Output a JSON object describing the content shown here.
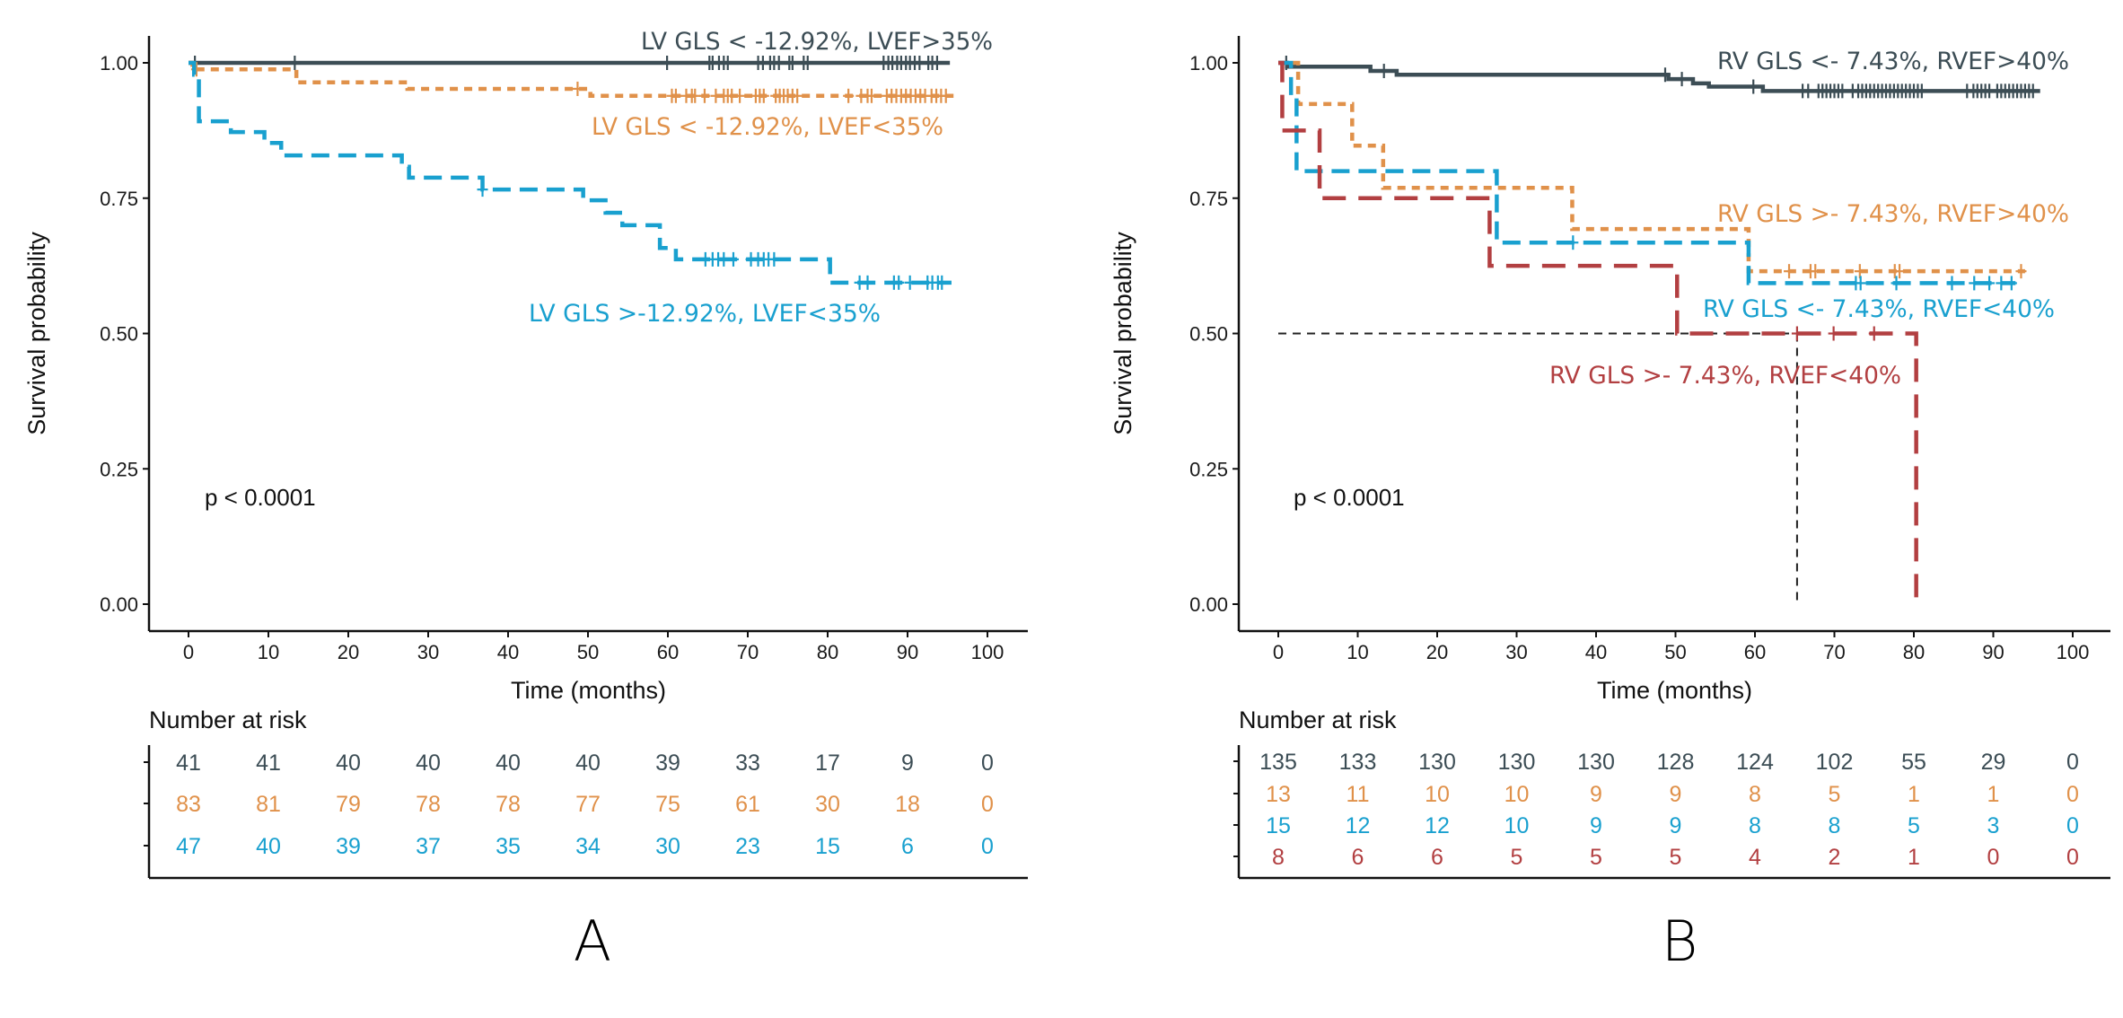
{
  "chart_data": [
    {
      "type": "line",
      "subtype": "kaplan-meier",
      "panel_label": "A",
      "xlabel": "Time (months)",
      "ylabel": "Survival probability",
      "xlim": [
        0,
        100
      ],
      "ylim": [
        0,
        1
      ],
      "x_ticks": [
        0,
        10,
        20,
        30,
        40,
        50,
        60,
        70,
        80,
        90,
        100
      ],
      "y_ticks": [
        "0.00",
        "0.25",
        "0.50",
        "0.75",
        "1.00"
      ],
      "grid": false,
      "pvalue_text": "p < 0.0001",
      "median_line": null,
      "risk_table_title": "Number at risk",
      "series": [
        {
          "name": "LV GLS < -12.92%,  LVEF>35%",
          "color": "#3c4d55",
          "linestyle": "solid",
          "steps": [
            [
              0,
              1.0
            ]
          ],
          "end_time": 95.3,
          "censor_times": [
            0.8,
            13.3,
            59.9,
            65.2,
            65.6,
            66.4,
            67.0,
            67.5,
            71.3,
            71.9,
            72.8,
            73.3,
            73.9,
            75.2,
            75.6,
            77.0,
            77.5,
            87.0,
            87.6,
            88.1,
            88.7,
            89.2,
            89.8,
            90.3,
            90.9,
            91.5,
            92.6,
            93.1,
            93.7
          ],
          "risk": [
            41,
            41,
            40,
            40,
            40,
            40,
            39,
            33,
            17,
            9,
            0
          ]
        },
        {
          "name": "LV GLS < -12.92%,  LVEF<35%",
          "color": "#e0914a",
          "linestyle": "dotted",
          "steps": [
            [
              0,
              1.0
            ],
            [
              0.5,
              0.988
            ],
            [
              13.5,
              0.964
            ],
            [
              27.4,
              0.952
            ],
            [
              50.3,
              0.939
            ]
          ],
          "end_time": 95.8,
          "censor_times": [
            1.0,
            48.7,
            60.5,
            61.0,
            62.3,
            63.0,
            63.4,
            64.6,
            66.0,
            67.0,
            67.5,
            68.0,
            69.0,
            71.0,
            71.5,
            72.0,
            73.5,
            74.0,
            74.5,
            75.0,
            75.6,
            76.2,
            82.6,
            84.2,
            85.0,
            85.5,
            87.4,
            88.0,
            88.6,
            89.2,
            89.8,
            90.4,
            91.0,
            91.6,
            92.2,
            93.0,
            93.6,
            94.2,
            94.8
          ],
          "risk": [
            83,
            81,
            79,
            78,
            78,
            77,
            75,
            61,
            30,
            18,
            0
          ]
        },
        {
          "name": "LV GLS >-12.92%,  LVEF<35%",
          "color": "#19a0cf",
          "linestyle": "dashed",
          "steps": [
            [
              0,
              1.0
            ],
            [
              0.7,
              0.978
            ],
            [
              1.3,
              0.892
            ],
            [
              5.3,
              0.872
            ],
            [
              9.5,
              0.852
            ],
            [
              11.6,
              0.829
            ],
            [
              26.7,
              0.808
            ],
            [
              27.6,
              0.788
            ],
            [
              36.8,
              0.766
            ],
            [
              49.4,
              0.746
            ],
            [
              52.2,
              0.723
            ],
            [
              54.3,
              0.7
            ],
            [
              59.0,
              0.658
            ],
            [
              61.0,
              0.637
            ],
            [
              80.3,
              0.594
            ]
          ],
          "end_time": 95.5,
          "censor_times": [
            36.8,
            64.7,
            65.6,
            66.3,
            67.0,
            68.2,
            70.4,
            71.3,
            72.0,
            72.6,
            73.3,
            84.0,
            85.0,
            88.3,
            88.9,
            90.3,
            92.5,
            93.1,
            93.8,
            94.3
          ],
          "risk": [
            47,
            40,
            39,
            37,
            35,
            34,
            30,
            23,
            15,
            6,
            0
          ]
        }
      ]
    },
    {
      "type": "line",
      "subtype": "kaplan-meier",
      "panel_label": "B",
      "xlabel": "Time (months)",
      "ylabel": "Survival probability",
      "xlim": [
        0,
        100
      ],
      "ylim": [
        0,
        1
      ],
      "x_ticks": [
        0,
        10,
        20,
        30,
        40,
        50,
        60,
        70,
        80,
        90,
        100
      ],
      "y_ticks": [
        "0.00",
        "0.25",
        "0.50",
        "0.75",
        "1.00"
      ],
      "grid": false,
      "pvalue_text": "p < 0.0001",
      "median_line": {
        "survival": 0.5,
        "time": 65.3
      },
      "risk_table_title": "Number at risk",
      "series": [
        {
          "name": "RV GLS <- 7.43%, RVEF>40%",
          "color": "#3c4d55",
          "linestyle": "solid",
          "steps": [
            [
              0,
              1.0
            ],
            [
              1.1,
              0.993
            ],
            [
              11.6,
              0.985
            ],
            [
              14.9,
              0.978
            ],
            [
              49.1,
              0.97
            ],
            [
              52.2,
              0.962
            ],
            [
              54.2,
              0.956
            ],
            [
              61.0,
              0.948
            ]
          ],
          "end_time": 95.9,
          "censor_times": [
            1.0,
            13.3,
            48.7,
            50.8,
            59.8,
            66.0,
            66.7,
            68.0,
            68.5,
            69.0,
            69.5,
            70.0,
            70.5,
            71.0,
            72.3,
            73.0,
            73.5,
            74.0,
            74.5,
            75.0,
            75.5,
            76.0,
            76.5,
            77.0,
            77.5,
            78.0,
            78.5,
            79.0,
            79.5,
            80.0,
            80.5,
            81.0,
            86.7,
            87.5,
            88.0,
            88.5,
            89.0,
            89.5,
            90.5,
            91.0,
            91.5,
            92.0,
            92.5,
            93.0,
            93.5,
            94.0,
            94.5,
            95.0
          ],
          "risk": [
            135,
            133,
            130,
            130,
            130,
            128,
            124,
            102,
            55,
            29,
            0
          ]
        },
        {
          "name": "RV GLS >- 7.43%, RVEF>40%",
          "color": "#e0914a",
          "linestyle": "dotted",
          "steps": [
            [
              0,
              1.0
            ],
            [
              2.5,
              0.924
            ],
            [
              9.3,
              0.847
            ],
            [
              13.2,
              0.769
            ],
            [
              37.0,
              0.693
            ],
            [
              59.2,
              0.615
            ]
          ],
          "end_time": 94.0,
          "censor_times": [
            64.3,
            67.0,
            67.6,
            73.2,
            77.6,
            78.2,
            93.5
          ],
          "risk": [
            13,
            11,
            10,
            10,
            9,
            9,
            8,
            5,
            1,
            1,
            0
          ]
        },
        {
          "name": "RV GLS <- 7.43%, RVEF<40%",
          "color": "#19a0cf",
          "linestyle": "dashed",
          "steps": [
            [
              0,
              1.0
            ],
            [
              1.6,
              0.937
            ],
            [
              2.3,
              0.8
            ],
            [
              27.5,
              0.668
            ],
            [
              59.2,
              0.593
            ]
          ],
          "end_time": 92.8,
          "censor_times": [
            37.1,
            72.7,
            73.3,
            77.8,
            84.8,
            87.6,
            89.5,
            91.0,
            92.3
          ],
          "risk": [
            15,
            12,
            12,
            10,
            9,
            9,
            8,
            8,
            5,
            3,
            0
          ]
        },
        {
          "name": "RV GLS >- 7.43%, RVEF<40%",
          "color": "#b23f41",
          "linestyle": "longdash",
          "steps": [
            [
              0,
              1.0
            ],
            [
              0.5,
              0.875
            ],
            [
              5.2,
              0.75
            ],
            [
              26.6,
              0.625
            ],
            [
              50.2,
              0.5
            ],
            [
              80.3,
              0.0
            ]
          ],
          "end_time": 80.3,
          "censor_times": [
            65.3,
            69.9,
            75.0
          ],
          "risk": [
            8,
            6,
            6,
            5,
            5,
            5,
            4,
            2,
            1,
            0,
            0
          ]
        }
      ]
    }
  ]
}
